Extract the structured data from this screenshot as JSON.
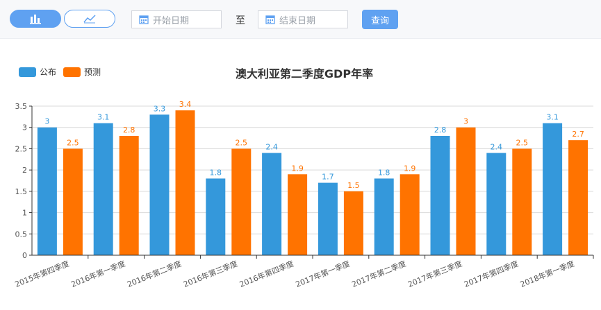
{
  "toolbar": {
    "bar_toggle_icon": "bar-chart-icon",
    "line_toggle_icon": "line-chart-icon",
    "start_date_placeholder": "开始日期",
    "end_date_placeholder": "结束日期",
    "date_separator": "至",
    "calendar_icon": "calendar-icon",
    "query_label": "查询",
    "accent_color": "#5fa1f1"
  },
  "chart_data": {
    "type": "bar",
    "title": "澳大利亚第二季度GDP年率",
    "xlabel": "",
    "ylabel": "",
    "ylim": [
      0,
      3.5
    ],
    "yticks": [
      "0",
      "0.5",
      "1",
      "1.5",
      "2",
      "2.5",
      "3",
      "3.5"
    ],
    "grid": true,
    "legend_position": "top-left",
    "categories": [
      "2015年第四季度",
      "2016年第一季度",
      "2016年第二季度",
      "2016年第三季度",
      "2016年第四季度",
      "2017年第一季度",
      "2017年第二季度",
      "2017年第三季度",
      "2017年第四季度",
      "2018年第一季度"
    ],
    "series": [
      {
        "name": "公布",
        "color": "#3498db",
        "values": [
          3,
          3.1,
          3.3,
          1.8,
          2.4,
          1.7,
          1.8,
          2.8,
          2.4,
          3.1
        ]
      },
      {
        "name": "预测",
        "color": "#ff7300",
        "values": [
          2.5,
          2.8,
          3.4,
          2.5,
          1.9,
          1.5,
          1.9,
          3,
          2.5,
          2.7
        ]
      }
    ]
  }
}
